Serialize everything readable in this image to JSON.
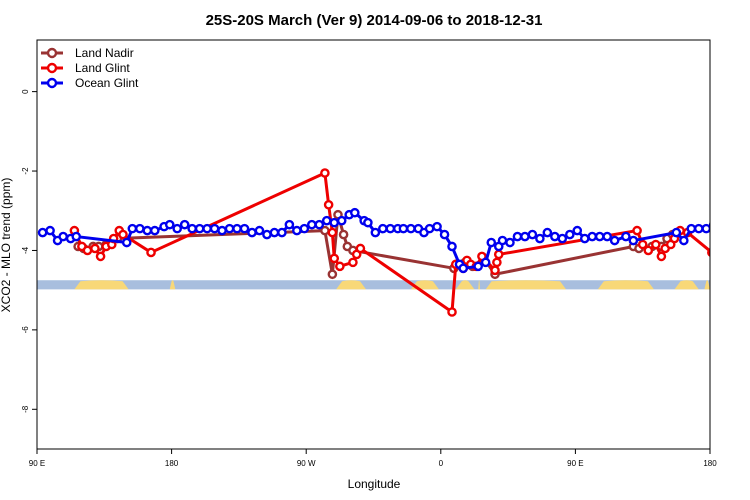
{
  "chart_data": {
    "type": "line",
    "title": "25S-20S March (Ver 9)   2014-09-06 to 2018-12-31",
    "xlabel": "Longitude",
    "ylabel": "XCO2 - MLO trend (ppm)",
    "xlim": [
      90,
      450
    ],
    "ylim": [
      -9,
      1.3
    ],
    "x_ticks": [
      {
        "value": 90,
        "label": "90 E"
      },
      {
        "value": 162,
        "label": "180"
      },
      {
        "value": 234,
        "label": "90 W"
      },
      {
        "value": 306,
        "label": "0"
      },
      {
        "value": 378,
        "label": "90 E"
      },
      {
        "value": 450,
        "label": "180"
      }
    ],
    "y_ticks": [
      {
        "value": 0,
        "label": "0"
      },
      {
        "value": -2,
        "label": "-2"
      },
      {
        "value": -4,
        "label": "-4"
      },
      {
        "value": -6,
        "label": "-6"
      },
      {
        "value": -8,
        "label": "-8"
      }
    ],
    "legend_position": "top-left",
    "grid": false,
    "land_strip": {
      "y_range": [
        -4.75,
        -4.98
      ],
      "ocean_color": "#a8bede",
      "land_color": "#f8d878",
      "land_segments": [
        [
          110,
          139
        ],
        [
          161,
          164
        ],
        [
          250,
          266
        ],
        [
          290,
          305
        ],
        [
          314,
          324
        ],
        [
          326,
          327
        ],
        [
          330,
          373
        ],
        [
          390,
          420
        ],
        [
          431,
          444
        ],
        [
          447,
          450
        ]
      ]
    },
    "series": [
      {
        "name": "Land Nadir",
        "color": "#993333",
        "points": [
          [
            112,
            -3.9
          ],
          [
            115,
            -3.95
          ],
          [
            120,
            -3.9
          ],
          [
            123,
            -3.9
          ],
          [
            127,
            -3.85
          ],
          [
            133,
            -3.7
          ],
          [
            244,
            -3.5
          ],
          [
            248,
            -4.6
          ],
          [
            251,
            -3.1
          ],
          [
            254,
            -3.6
          ],
          [
            256,
            -3.9
          ],
          [
            259,
            -4.0
          ],
          [
            313,
            -4.45
          ],
          [
            319,
            -4.3
          ],
          [
            323,
            -4.4
          ],
          [
            329,
            -4.2
          ],
          [
            335,
            -4.6
          ],
          [
            409,
            -3.9
          ],
          [
            412,
            -3.95
          ],
          [
            419,
            -3.9
          ],
          [
            424,
            -3.9
          ],
          [
            427,
            -3.7
          ],
          [
            430,
            -3.6
          ]
        ]
      },
      {
        "name": "Land Glint",
        "color": "#ee0000",
        "points": [
          [
            110,
            -3.5
          ],
          [
            114,
            -3.9
          ],
          [
            117,
            -4.0
          ],
          [
            121,
            -3.95
          ],
          [
            124,
            -4.15
          ],
          [
            127,
            -3.9
          ],
          [
            130,
            -3.85
          ],
          [
            131,
            -3.7
          ],
          [
            134,
            -3.5
          ],
          [
            136,
            -3.6
          ],
          [
            151,
            -4.05
          ],
          [
            244,
            -2.05
          ],
          [
            246,
            -2.85
          ],
          [
            248,
            -3.55
          ],
          [
            249,
            -4.2
          ],
          [
            252,
            -4.4
          ],
          [
            259,
            -4.3
          ],
          [
            261,
            -4.1
          ],
          [
            263,
            -3.95
          ],
          [
            312,
            -5.55
          ],
          [
            314,
            -4.35
          ],
          [
            318,
            -4.45
          ],
          [
            320,
            -4.25
          ],
          [
            322,
            -4.35
          ],
          [
            325,
            -4.4
          ],
          [
            328,
            -4.15
          ],
          [
            335,
            -4.5
          ],
          [
            336,
            -4.3
          ],
          [
            337,
            -4.1
          ],
          [
            411,
            -3.5
          ],
          [
            414,
            -3.85
          ],
          [
            417,
            -4.0
          ],
          [
            421,
            -3.85
          ],
          [
            424,
            -4.15
          ],
          [
            426,
            -3.95
          ],
          [
            429,
            -3.85
          ],
          [
            431,
            -3.7
          ],
          [
            434,
            -3.5
          ],
          [
            438,
            -3.55
          ],
          [
            451,
            -4.05
          ],
          [
            453,
            -3.45
          ]
        ]
      },
      {
        "name": "Ocean Glint",
        "color": "#0000ee",
        "points": [
          [
            93,
            -3.55
          ],
          [
            97,
            -3.5
          ],
          [
            101,
            -3.75
          ],
          [
            104,
            -3.65
          ],
          [
            108,
            -3.7
          ],
          [
            111,
            -3.65
          ],
          [
            138,
            -3.8
          ],
          [
            141,
            -3.45
          ],
          [
            145,
            -3.45
          ],
          [
            149,
            -3.5
          ],
          [
            153,
            -3.5
          ],
          [
            158,
            -3.4
          ],
          [
            161,
            -3.35
          ],
          [
            165,
            -3.45
          ],
          [
            169,
            -3.35
          ],
          [
            173,
            -3.45
          ],
          [
            177,
            -3.45
          ],
          [
            181,
            -3.45
          ],
          [
            185,
            -3.45
          ],
          [
            189,
            -3.5
          ],
          [
            193,
            -3.45
          ],
          [
            197,
            -3.45
          ],
          [
            201,
            -3.45
          ],
          [
            205,
            -3.55
          ],
          [
            209,
            -3.5
          ],
          [
            213,
            -3.6
          ],
          [
            217,
            -3.55
          ],
          [
            221,
            -3.55
          ],
          [
            225,
            -3.35
          ],
          [
            229,
            -3.5
          ],
          [
            233,
            -3.45
          ],
          [
            237,
            -3.35
          ],
          [
            241,
            -3.35
          ],
          [
            245,
            -3.25
          ],
          [
            249,
            -3.3
          ],
          [
            253,
            -3.25
          ],
          [
            257,
            -3.1
          ],
          [
            260,
            -3.05
          ],
          [
            265,
            -3.25
          ],
          [
            267,
            -3.3
          ],
          [
            271,
            -3.55
          ],
          [
            275,
            -3.45
          ],
          [
            279,
            -3.45
          ],
          [
            283,
            -3.45
          ],
          [
            286,
            -3.45
          ],
          [
            290,
            -3.45
          ],
          [
            294,
            -3.45
          ],
          [
            297,
            -3.55
          ],
          [
            300,
            -3.45
          ],
          [
            304,
            -3.4
          ],
          [
            308,
            -3.6
          ],
          [
            312,
            -3.9
          ],
          [
            316,
            -4.35
          ],
          [
            318,
            -4.45
          ],
          [
            326,
            -4.4
          ],
          [
            330,
            -4.3
          ],
          [
            333,
            -3.8
          ],
          [
            337,
            -3.9
          ],
          [
            339,
            -3.75
          ],
          [
            343,
            -3.8
          ],
          [
            347,
            -3.65
          ],
          [
            351,
            -3.65
          ],
          [
            355,
            -3.6
          ],
          [
            359,
            -3.7
          ],
          [
            363,
            -3.55
          ],
          [
            367,
            -3.65
          ],
          [
            371,
            -3.7
          ],
          [
            375,
            -3.6
          ],
          [
            379,
            -3.5
          ],
          [
            383,
            -3.7
          ],
          [
            387,
            -3.65
          ],
          [
            391,
            -3.65
          ],
          [
            395,
            -3.65
          ],
          [
            399,
            -3.75
          ],
          [
            405,
            -3.65
          ],
          [
            409,
            -3.75
          ],
          [
            432,
            -3.55
          ],
          [
            436,
            -3.75
          ],
          [
            440,
            -3.45
          ],
          [
            444,
            -3.45
          ],
          [
            448,
            -3.45
          ],
          [
            452,
            -3.35
          ],
          [
            455,
            -3.3
          ]
        ]
      }
    ]
  }
}
